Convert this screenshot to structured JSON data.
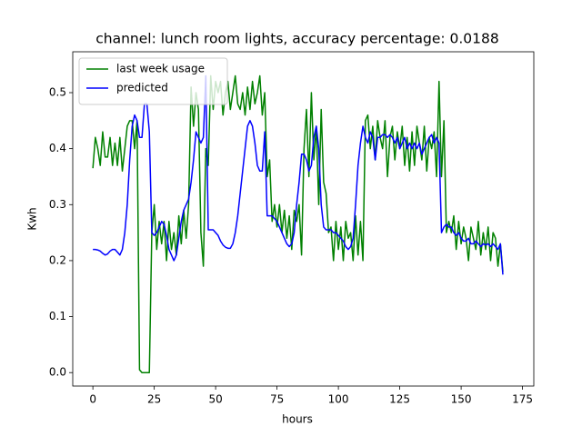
{
  "chart_data": {
    "type": "line",
    "title": "channel: lunch room lights, accuracy percentage: 0.0188",
    "x_label": "hours",
    "y_label": "Kwh",
    "x": [
      0,
      1,
      2,
      3,
      4,
      5,
      6,
      7,
      8,
      9,
      10,
      11,
      12,
      13,
      14,
      15,
      16,
      17,
      18,
      19,
      20,
      21,
      22,
      23,
      24,
      25,
      26,
      27,
      28,
      29,
      30,
      31,
      32,
      33,
      34,
      35,
      36,
      37,
      38,
      39,
      40,
      41,
      42,
      43,
      44,
      45,
      46,
      47,
      48,
      49,
      50,
      51,
      52,
      53,
      54,
      55,
      56,
      57,
      58,
      59,
      60,
      61,
      62,
      63,
      64,
      65,
      66,
      67,
      68,
      69,
      70,
      71,
      72,
      73,
      74,
      75,
      76,
      77,
      78,
      79,
      80,
      81,
      82,
      83,
      84,
      85,
      86,
      87,
      88,
      89,
      90,
      91,
      92,
      93,
      94,
      95,
      96,
      97,
      98,
      99,
      100,
      101,
      102,
      103,
      104,
      105,
      106,
      107,
      108,
      109,
      110,
      111,
      112,
      113,
      114,
      115,
      116,
      117,
      118,
      119,
      120,
      121,
      122,
      123,
      124,
      125,
      126,
      127,
      128,
      129,
      130,
      131,
      132,
      133,
      134,
      135,
      136,
      137,
      138,
      139,
      140,
      141,
      142,
      143,
      144,
      145,
      146,
      147,
      148,
      149,
      150,
      151,
      152,
      153,
      154,
      155,
      156,
      157,
      158,
      159,
      160,
      161,
      162,
      163,
      164,
      165,
      166,
      167
    ],
    "series": [
      {
        "name": "last week usage",
        "color": "#008000",
        "values": [
          0.365,
          0.42,
          0.4,
          0.37,
          0.43,
          0.385,
          0.385,
          0.42,
          0.37,
          0.41,
          0.37,
          0.42,
          0.36,
          0.4,
          0.44,
          0.45,
          0.45,
          0.4,
          0.45,
          0.005,
          0,
          0,
          0,
          0,
          0.25,
          0.3,
          0.22,
          0.27,
          0.23,
          0.27,
          0.2,
          0.27,
          0.22,
          0.25,
          0.21,
          0.28,
          0.23,
          0.29,
          0.24,
          0.3,
          0.51,
          0.44,
          0.5,
          0.47,
          0.25,
          0.19,
          0.4,
          0.37,
          0.53,
          0.47,
          0.52,
          0.5,
          0.52,
          0.46,
          0.5,
          0.52,
          0.47,
          0.5,
          0.53,
          0.48,
          0.47,
          0.5,
          0.46,
          0.51,
          0.47,
          0.52,
          0.48,
          0.5,
          0.53,
          0.46,
          0.5,
          0.35,
          0.38,
          0.27,
          0.3,
          0.26,
          0.3,
          0.25,
          0.29,
          0.24,
          0.28,
          0.22,
          0.29,
          0.27,
          0.3,
          0.21,
          0.4,
          0.47,
          0.35,
          0.5,
          0.38,
          0.44,
          0.3,
          0.47,
          0.34,
          0.32,
          0.25,
          0.26,
          0.2,
          0.27,
          0.22,
          0.26,
          0.2,
          0.27,
          0.24,
          0.25,
          0.2,
          0.28,
          0.21,
          0.27,
          0.2,
          0.45,
          0.46,
          0.4,
          0.44,
          0.38,
          0.45,
          0.42,
          0.4,
          0.45,
          0.35,
          0.42,
          0.44,
          0.38,
          0.43,
          0.4,
          0.44,
          0.37,
          0.42,
          0.36,
          0.43,
          0.37,
          0.44,
          0.41,
          0.38,
          0.44,
          0.36,
          0.42,
          0.4,
          0.43,
          0.35,
          0.52,
          0.35,
          0.45,
          0.25,
          0.27,
          0.25,
          0.28,
          0.22,
          0.27,
          0.23,
          0.26,
          0.24,
          0.2,
          0.26,
          0.24,
          0.22,
          0.27,
          0.21,
          0.25,
          0.22,
          0.26,
          0.2,
          0.25,
          0.24,
          0.19,
          0.23,
          0.18
        ]
      },
      {
        "name": "predicted",
        "color": "#0000ff",
        "values": [
          0.22,
          0.22,
          0.219,
          0.217,
          0.213,
          0.21,
          0.212,
          0.217,
          0.22,
          0.22,
          0.215,
          0.21,
          0.22,
          0.25,
          0.3,
          0.38,
          0.44,
          0.46,
          0.45,
          0.42,
          0.42,
          0.48,
          0.48,
          0.43,
          0.25,
          0.245,
          0.25,
          0.26,
          0.27,
          0.265,
          0.245,
          0.22,
          0.21,
          0.2,
          0.21,
          0.24,
          0.27,
          0.29,
          0.3,
          0.31,
          0.34,
          0.38,
          0.43,
          0.42,
          0.41,
          0.42,
          0.53,
          0.255,
          0.255,
          0.255,
          0.25,
          0.245,
          0.235,
          0.228,
          0.224,
          0.222,
          0.222,
          0.23,
          0.25,
          0.28,
          0.32,
          0.36,
          0.4,
          0.44,
          0.45,
          0.44,
          0.41,
          0.37,
          0.36,
          0.36,
          0.43,
          0.28,
          0.28,
          0.28,
          0.275,
          0.27,
          0.26,
          0.25,
          0.24,
          0.23,
          0.225,
          0.23,
          0.25,
          0.3,
          0.34,
          0.39,
          0.39,
          0.38,
          0.36,
          0.37,
          0.42,
          0.44,
          0.4,
          0.3,
          0.26,
          0.255,
          0.255,
          0.255,
          0.25,
          0.25,
          0.245,
          0.24,
          0.235,
          0.225,
          0.22,
          0.225,
          0.24,
          0.3,
          0.37,
          0.41,
          0.44,
          0.42,
          0.41,
          0.43,
          0.42,
          0.38,
          0.42,
          0.42,
          0.425,
          0.425,
          0.42,
          0.425,
          0.42,
          0.41,
          0.42,
          0.4,
          0.41,
          0.42,
          0.4,
          0.41,
          0.4,
          0.41,
          0.4,
          0.41,
          0.39,
          0.4,
          0.41,
          0.42,
          0.425,
          0.41,
          0.42,
          0.41,
          0.25,
          0.26,
          0.265,
          0.26,
          0.26,
          0.25,
          0.245,
          0.25,
          0.24,
          0.235,
          0.235,
          0.24,
          0.23,
          0.23,
          0.235,
          0.23,
          0.225,
          0.23,
          0.228,
          0.23,
          0.225,
          0.23,
          0.225,
          0.22,
          0.23,
          0.175
        ]
      }
    ],
    "xlim": [
      -8.2,
      179.6
    ],
    "ylim": [
      -0.024,
      0.573
    ],
    "xticks": [
      0,
      25,
      50,
      75,
      100,
      125,
      150,
      175
    ],
    "yticks": [
      {
        "value": 0,
        "label": "0.0"
      },
      0.1,
      0.2,
      0.3,
      0.4,
      0.5
    ],
    "legend": "upper left",
    "grid": false
  }
}
